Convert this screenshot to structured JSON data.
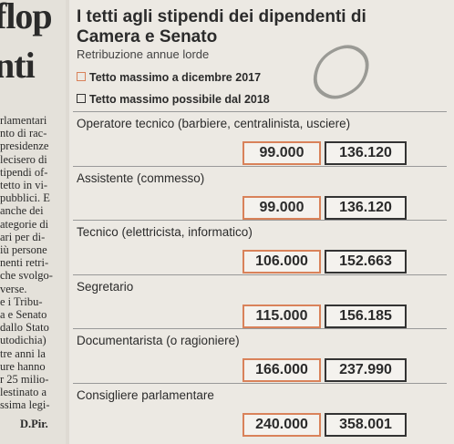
{
  "left_column": {
    "headline": [
      "flop",
      "nti"
    ],
    "lines": [
      "rlamentari",
      "nto di rac-",
      "presidenze",
      "lecisero di",
      "tipendi of-",
      "tetto in vi-",
      "pubblici. E",
      "anche dei",
      "ategorie di",
      "ari per di-",
      "iù persone",
      "nenti retri-",
      "che svolgo-",
      "verse.",
      "e i Tribu-",
      "a e Senato",
      "dallo Stato",
      "utodichia)",
      "tre anni la",
      "ure hanno",
      "r 25 milio-",
      "lestinato a",
      "ssima legi-"
    ],
    "signature": "D.Pir."
  },
  "header": {
    "title": "I tetti agli stipendi dei dipendenti di Camera e Senato",
    "subtitle": "Retribuzione annue lorde"
  },
  "legend": [
    "Tetto massimo a dicembre 2017",
    "Tetto massimo possibile dal 2018"
  ],
  "table": {
    "rows": [
      {
        "label": "Operatore tecnico (barbiere, centralinista, usciere)",
        "cap_2017": "99.000",
        "cap_2018": "136.120"
      },
      {
        "label": "Assistente (commesso)",
        "cap_2017": "99.000",
        "cap_2018": "136.120"
      },
      {
        "label": "Tecnico (elettricista, informatico)",
        "cap_2017": "106.000",
        "cap_2018": "152.663"
      },
      {
        "label": "Segretario",
        "cap_2017": "115.000",
        "cap_2018": "156.185"
      },
      {
        "label": "Documentarista (o ragioniere)",
        "cap_2017": "166.000",
        "cap_2018": "237.990"
      },
      {
        "label": "Consigliere parlamentare",
        "cap_2017": "240.000",
        "cap_2018": "358.001"
      }
    ]
  }
}
